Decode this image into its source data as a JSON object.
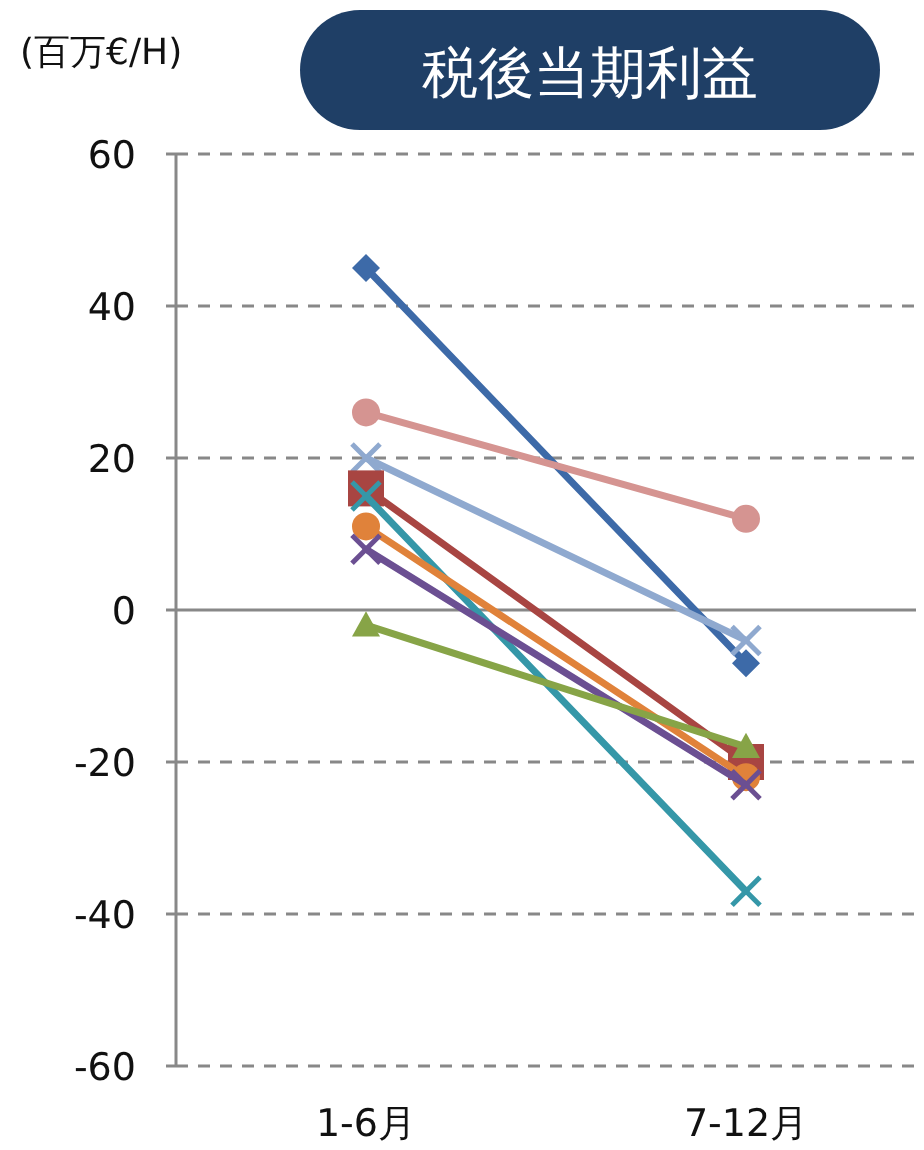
{
  "chart_data": {
    "type": "line",
    "title": "税後当期利益",
    "ylabel": "(百万€/H)",
    "categories": [
      "1-6月",
      "7-12月"
    ],
    "ylim": [
      -60,
      60
    ],
    "yticks": [
      -60,
      -40,
      -20,
      0,
      20,
      40,
      60
    ],
    "grid": "y",
    "line_style": "solid",
    "series": [
      {
        "color": "#3d6aa8",
        "marker": "diamond",
        "values": [
          45,
          -7
        ]
      },
      {
        "color": "#d59491",
        "marker": "circle",
        "values": [
          26,
          12
        ]
      },
      {
        "color": "#8fa9cf",
        "marker": "cross",
        "values": [
          20,
          -4
        ]
      },
      {
        "color": "#a84542",
        "marker": "square",
        "values": [
          16,
          -20
        ]
      },
      {
        "color": "#3597a8",
        "marker": "cross",
        "values": [
          15,
          -37
        ]
      },
      {
        "color": "#e0823a",
        "marker": "circle",
        "values": [
          11,
          -22
        ]
      },
      {
        "color": "#6b4f92",
        "marker": "cross",
        "values": [
          8,
          -23
        ]
      },
      {
        "color": "#87a447",
        "marker": "triangle",
        "values": [
          -2,
          -18
        ]
      }
    ]
  }
}
